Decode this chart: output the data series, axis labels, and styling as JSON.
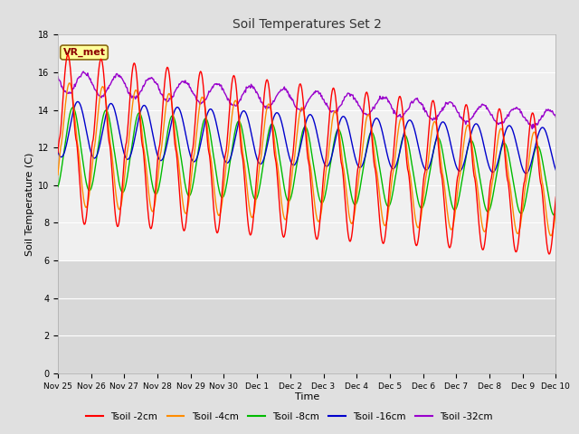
{
  "title": "Soil Temperatures Set 2",
  "xlabel": "Time",
  "ylabel": "Soil Temperature (C)",
  "ylim": [
    0,
    18
  ],
  "yticks": [
    0,
    2,
    4,
    6,
    8,
    10,
    12,
    14,
    16,
    18
  ],
  "annotation_text": "VR_met",
  "annotation_bg": "#FFFF99",
  "annotation_border": "#8B6914",
  "series_colors": {
    "Tsoil -2cm": "#FF0000",
    "Tsoil -4cm": "#FF8C00",
    "Tsoil -8cm": "#00BB00",
    "Tsoil -16cm": "#0000CC",
    "Tsoil -32cm": "#9900CC"
  },
  "x_tick_labels": [
    "Nov 25",
    "Nov 26",
    "Nov 27",
    "Nov 28",
    "Nov 29",
    "Nov 30",
    "Dec 1",
    "Dec 2",
    "Dec 3",
    "Dec 4",
    "Dec 5",
    "Dec 6",
    "Dec 7",
    "Dec 8",
    "Dec 9",
    "Dec 10"
  ],
  "background_color": "#E0E0E0",
  "plot_area_color": "#F0F0F0",
  "lower_band_color": "#D8D8D8",
  "grid_color": "#FFFFFF",
  "num_days": 15,
  "points_per_day": 48,
  "figwidth": 6.4,
  "figheight": 4.8,
  "dpi": 100
}
